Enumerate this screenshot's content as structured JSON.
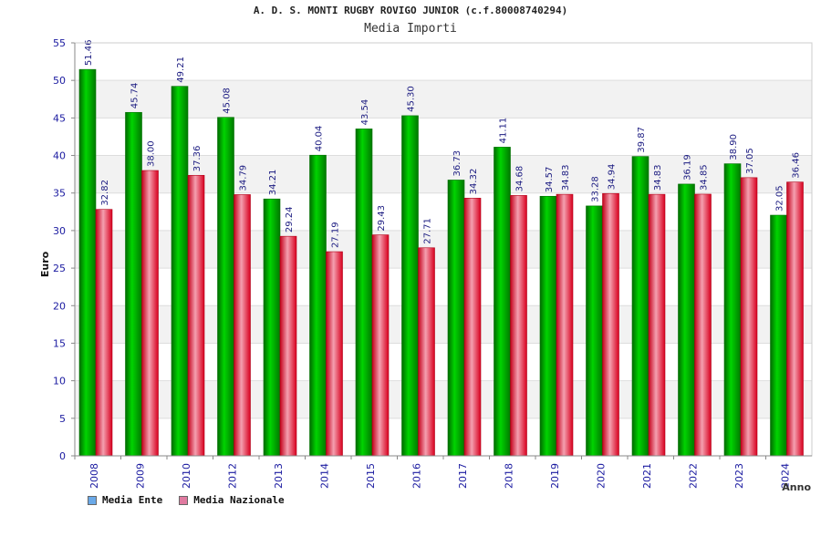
{
  "chart_data": {
    "type": "bar",
    "title": "A. D. S. MONTI RUGBY ROVIGO JUNIOR (c.f.80008740294)",
    "subtitle": "Media Importi",
    "xlabel": "Anno",
    "ylabel": "Euro",
    "ylim": [
      0,
      55
    ],
    "yticks": [
      0,
      5,
      10,
      15,
      20,
      25,
      30,
      35,
      40,
      45,
      50,
      55
    ],
    "categories": [
      "2008",
      "2009",
      "2010",
      "2012",
      "2013",
      "2014",
      "2015",
      "2016",
      "2017",
      "2018",
      "2019",
      "2020",
      "2021",
      "2022",
      "2023",
      "2024"
    ],
    "series": [
      {
        "name": "Media Ente",
        "color": "#00b400",
        "legend_color": "#6aa9e8",
        "values": [
          51.46,
          45.74,
          49.21,
          45.08,
          34.21,
          40.04,
          43.54,
          45.3,
          36.73,
          41.11,
          34.57,
          33.28,
          39.87,
          36.19,
          38.9,
          32.05
        ],
        "labels": [
          "51.46",
          "45.74",
          "49.21",
          "45.08",
          "34.21",
          "40.04",
          "43.54",
          "45.30",
          "36.73",
          "41.11",
          "34.57",
          "33.28",
          "39.87",
          "36.19",
          "38.90",
          "32.05"
        ]
      },
      {
        "name": "Media Nazionale",
        "color": "#e8102a",
        "legend_color": "#e07aa0",
        "values": [
          32.82,
          38.0,
          37.36,
          34.79,
          29.24,
          27.19,
          29.43,
          27.71,
          34.32,
          34.68,
          34.83,
          34.94,
          34.83,
          34.85,
          37.05,
          36.46
        ],
        "labels": [
          "32.82",
          "38.00",
          "37.36",
          "34.79",
          "29.24",
          "27.19",
          "29.43",
          "27.71",
          "34.32",
          "34.68",
          "34.83",
          "34.94",
          "34.83",
          "34.85",
          "37.05",
          "36.46"
        ]
      }
    ]
  }
}
